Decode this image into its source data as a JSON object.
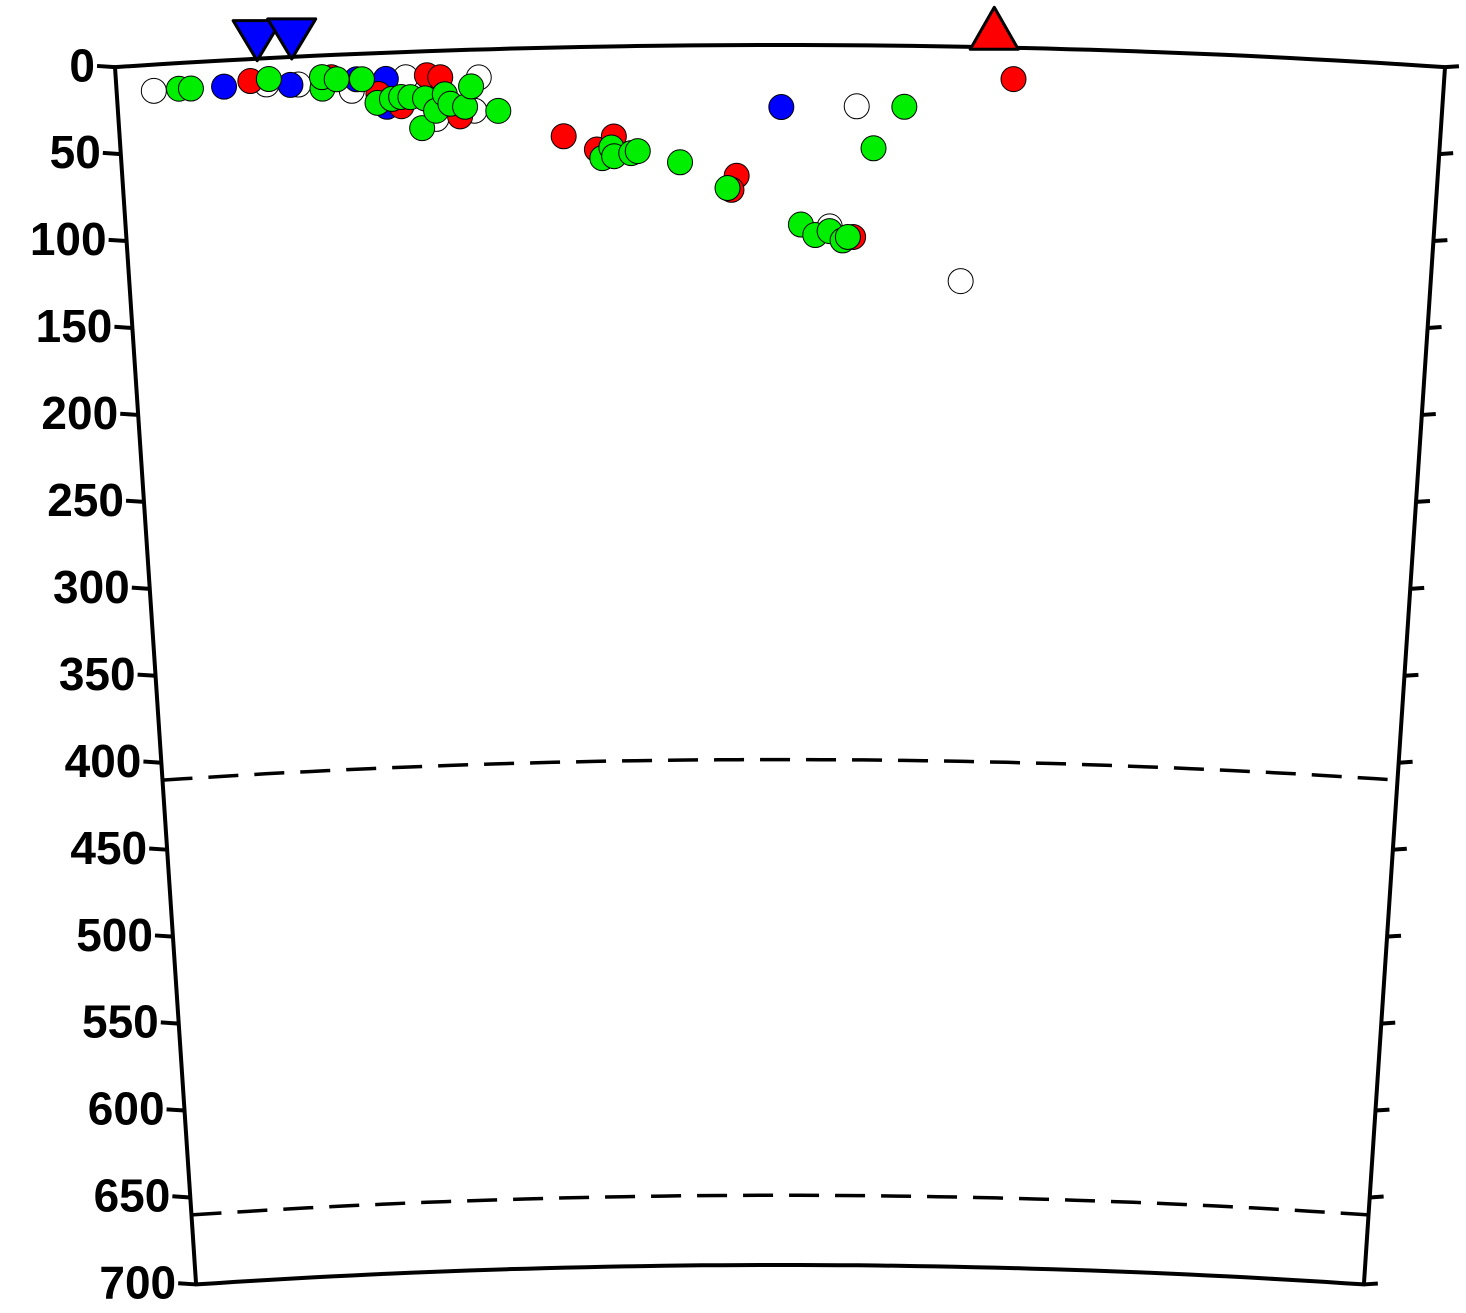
{
  "chart_data": {
    "type": "scatter",
    "xlim": [
      0,
      100
    ],
    "ylim": [
      0,
      700
    ],
    "yticks": [
      0,
      50,
      100,
      150,
      200,
      250,
      300,
      350,
      400,
      450,
      500,
      550,
      600,
      650,
      700
    ],
    "y_inverted": true,
    "reference_depths": [
      410,
      660
    ],
    "series": [
      {
        "color": "#ffffff",
        "x": [
          2.8,
          11.3,
          13.7,
          17.7,
          21.8,
          27.3,
          26.9,
          24,
          55.8,
          63.9,
          53.8
        ],
        "values": [
          15,
          15,
          16,
          21,
          14.5,
          16,
          35,
          39,
          35,
          134.5,
          104
        ]
      },
      {
        "color": "#0000ff",
        "x": [
          8.1,
          13.1,
          18.1,
          20.3,
          20.3,
          50.1
        ],
        "values": [
          15,
          16,
          14.5,
          15,
          31,
          35.6
        ]
      },
      {
        "color": "#ff0000",
        "x": [
          10.1,
          16.2,
          19.7,
          21.4,
          23.4,
          24.4,
          25.8,
          33.6,
          36.1,
          37.4,
          46.7,
          46.3,
          55.6,
          67.6
        ],
        "values": [
          12.6,
          12.7,
          23.5,
          31,
          13.8,
          15.2,
          38,
          51,
          59,
          51.7,
          75,
          83,
          110,
          18
        ]
      },
      {
        "color": "#00ee00",
        "x": [
          4.7,
          5.6,
          11.5,
          15.5,
          15.5,
          16.6,
          18.5,
          19.6,
          20.7,
          21.4,
          22.1,
          22.9,
          23.2,
          24,
          24.7,
          25.1,
          26.2,
          26.7,
          28.7,
          36.5,
          37.2,
          37.4,
          38.7,
          39.2,
          42.4,
          46,
          51.6,
          52.7,
          53.8,
          54.8,
          55.2,
          57.1,
          59.4
        ],
        "values": [
          14.7,
          15,
          12,
          19,
          12.4,
          14,
          14.6,
          28.5,
          26.6,
          25.7,
          26,
          44,
          27,
          34.3,
          25,
          30.6,
          32.6,
          21,
          35.5,
          64,
          58,
          63,
          61.4,
          60.3,
          67,
          82,
          103,
          109,
          106.7,
          112,
          110,
          59,
          35
        ]
      }
    ],
    "stations": [
      {
        "x": 10.7,
        "color": "#0000ff",
        "shape": "triangle-down"
      },
      {
        "x": 13.3,
        "color": "#0000ff",
        "shape": "triangle-down"
      },
      {
        "x": 66.1,
        "color": "#ff0000",
        "shape": "triangle-up"
      }
    ]
  }
}
